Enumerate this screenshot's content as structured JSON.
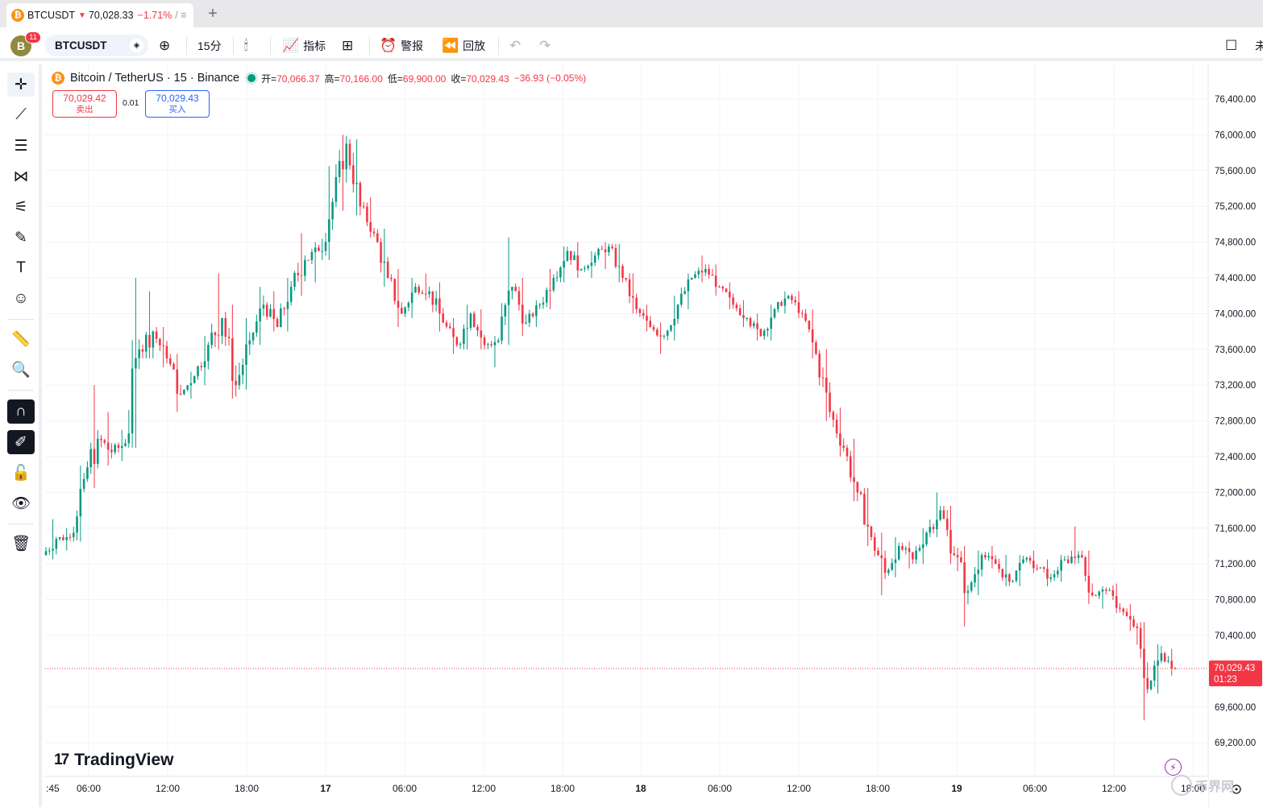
{
  "browser": {
    "tab": {
      "coin_glyph": "₿",
      "symbol": "BTCUSDT",
      "price": "70,028.33",
      "change": "−1.71%",
      "more": "/ ≡"
    },
    "new_tab": "+"
  },
  "toolbar": {
    "avatar": "B",
    "notifications": "11",
    "symbol": "BTCUSDT",
    "interval": "15分",
    "indicators": "指标",
    "alerts": "警报",
    "replay": "回放",
    "right_label": "未"
  },
  "legend": {
    "coin_glyph": "₿",
    "title": "Bitcoin / TetherUS · 15 · Binance",
    "open_label": "开=",
    "open": "70,066.37",
    "high_label": "高=",
    "high": "70,166.00",
    "low_label": "低=",
    "low": "69,900.00",
    "close_label": "收=",
    "close": "70,029.43",
    "change": "−36.93 (−0.05%)"
  },
  "trade": {
    "sell_price": "70,029.42",
    "sell_label": "卖出",
    "spread": "0.01",
    "buy_price": "70,029.43",
    "buy_label": "买入"
  },
  "branding": {
    "logo_mark": "17",
    "logo_text": "TradingView"
  },
  "watermark": "币界网",
  "price_tag": {
    "price": "70,029.43",
    "countdown": "01:23"
  },
  "colors": {
    "up": "#089981",
    "down": "#f23645",
    "grid": "#f0f3fa",
    "axis_text": "#131722",
    "accent": "#2962ff"
  },
  "chart_data": {
    "type": "candlestick",
    "title": "Bitcoin / TetherUS · 15 · Binance",
    "x_tick_labels": [
      ":45",
      "06:00",
      "12:00",
      "18:00",
      "17",
      "06:00",
      "12:00",
      "18:00",
      "18",
      "06:00",
      "12:00",
      "18:00",
      "19",
      "06:00",
      "12:00",
      "18:00"
    ],
    "y_tick_labels": [
      "76,400.00",
      "76,000.00",
      "75,600.00",
      "75,200.00",
      "74,800.00",
      "74,400.00",
      "74,000.00",
      "73,600.00",
      "73,200.00",
      "72,800.00",
      "72,400.00",
      "72,000.00",
      "71,600.00",
      "71,200.00",
      "70,800.00",
      "70,400.00",
      "69,600.00",
      "69,200.00"
    ],
    "ylim": [
      69100,
      76600
    ],
    "last_price": 70029.43,
    "grid": true,
    "ohlc_anchor_points": [
      [
        71300,
        71700,
        71250,
        71480
      ],
      [
        71480,
        71600,
        71350,
        71500
      ],
      [
        71500,
        72300,
        71450,
        72150
      ],
      [
        72150,
        73200,
        72050,
        72600
      ],
      [
        72600,
        72900,
        72300,
        72450
      ],
      [
        72450,
        72700,
        72350,
        72550
      ],
      [
        72550,
        74400,
        72500,
        73600
      ],
      [
        73600,
        74250,
        73500,
        73800
      ],
      [
        73800,
        73850,
        73400,
        73500
      ],
      [
        73500,
        73550,
        72900,
        73100
      ],
      [
        73100,
        73350,
        73050,
        73300
      ],
      [
        73300,
        73750,
        73200,
        73650
      ],
      [
        73650,
        74450,
        73600,
        73950
      ],
      [
        73950,
        74100,
        73050,
        73200
      ],
      [
        73200,
        73950,
        73150,
        73700
      ],
      [
        73700,
        74300,
        73650,
        74100
      ],
      [
        74100,
        74250,
        73800,
        73850
      ],
      [
        73850,
        74400,
        73800,
        74300
      ],
      [
        74300,
        74900,
        74200,
        74600
      ],
      [
        74600,
        74800,
        74350,
        74700
      ],
      [
        74700,
        75650,
        74600,
        75250
      ],
      [
        75250,
        76000,
        75150,
        75900
      ],
      [
        75900,
        75950,
        75100,
        75200
      ],
      [
        75200,
        75300,
        74850,
        74900
      ],
      [
        74900,
        74950,
        74300,
        74400
      ],
      [
        74400,
        74500,
        73850,
        74000
      ],
      [
        74000,
        74400,
        73950,
        74300
      ],
      [
        74300,
        74450,
        74150,
        74250
      ],
      [
        74250,
        74350,
        73800,
        73900
      ],
      [
        73900,
        73950,
        73550,
        73650
      ],
      [
        73650,
        74100,
        73600,
        74000
      ],
      [
        74000,
        74050,
        73600,
        73650
      ],
      [
        73650,
        73750,
        73400,
        73700
      ],
      [
        73700,
        74850,
        73650,
        74300
      ],
      [
        74300,
        74400,
        73750,
        73900
      ],
      [
        73900,
        74150,
        73850,
        74100
      ],
      [
        74100,
        74500,
        74050,
        74400
      ],
      [
        74400,
        74750,
        74350,
        74700
      ],
      [
        74700,
        74800,
        74400,
        74500
      ],
      [
        74500,
        74700,
        74400,
        74650
      ],
      [
        74650,
        74800,
        74500,
        74750
      ],
      [
        74750,
        74780,
        74350,
        74400
      ],
      [
        74400,
        74450,
        74000,
        74050
      ],
      [
        74050,
        74100,
        73800,
        73850
      ],
      [
        73850,
        73900,
        73550,
        73750
      ],
      [
        73750,
        74200,
        73700,
        74100
      ],
      [
        74100,
        74450,
        74050,
        74400
      ],
      [
        74400,
        74650,
        74350,
        74500
      ],
      [
        74500,
        74550,
        74200,
        74300
      ],
      [
        74300,
        74350,
        74050,
        74100
      ],
      [
        74100,
        74150,
        73850,
        73950
      ],
      [
        73950,
        74000,
        73700,
        73750
      ],
      [
        73750,
        74100,
        73700,
        74050
      ],
      [
        74050,
        74250,
        74000,
        74200
      ],
      [
        74200,
        74250,
        73950,
        74000
      ],
      [
        74000,
        74050,
        73500,
        73550
      ],
      [
        73550,
        73600,
        72800,
        72900
      ],
      [
        72900,
        72950,
        72400,
        72500
      ],
      [
        72500,
        72600,
        71900,
        72000
      ],
      [
        72000,
        72050,
        71400,
        71500
      ],
      [
        71500,
        71550,
        70850,
        71100
      ],
      [
        71100,
        71500,
        71050,
        71400
      ],
      [
        71400,
        71450,
        71150,
        71250
      ],
      [
        71250,
        71600,
        71200,
        71550
      ],
      [
        71550,
        72000,
        71500,
        71800
      ],
      [
        71800,
        71850,
        71200,
        71300
      ],
      [
        71300,
        71400,
        70500,
        70900
      ],
      [
        70900,
        71350,
        70850,
        71300
      ],
      [
        71300,
        71400,
        71150,
        71200
      ],
      [
        71200,
        71300,
        70950,
        71000
      ],
      [
        71000,
        71300,
        70950,
        71250
      ],
      [
        71250,
        71350,
        71100,
        71150
      ],
      [
        71150,
        71250,
        70950,
        71050
      ],
      [
        71050,
        71300,
        71000,
        71250
      ],
      [
        71250,
        71620,
        71200,
        71300
      ],
      [
        71300,
        71350,
        70750,
        70850
      ],
      [
        70850,
        70950,
        70700,
        70900
      ],
      [
        70900,
        70980,
        70650,
        70700
      ],
      [
        70700,
        70750,
        70450,
        70500
      ],
      [
        70500,
        70550,
        69450,
        69800
      ],
      [
        69800,
        70300,
        69750,
        70200
      ],
      [
        70200,
        70250,
        69950,
        70029.43
      ]
    ]
  }
}
